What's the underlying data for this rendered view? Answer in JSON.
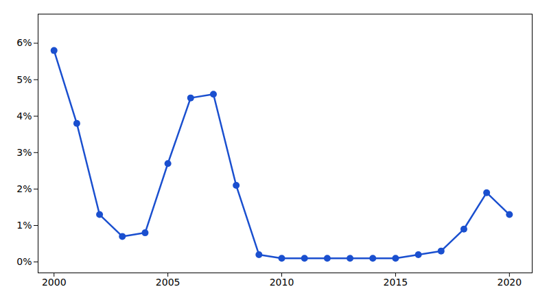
{
  "chart_data": {
    "type": "line",
    "x": [
      2000,
      2001,
      2002,
      2003,
      2004,
      2005,
      2006,
      2007,
      2008,
      2009,
      2010,
      2011,
      2012,
      2013,
      2014,
      2015,
      2016,
      2017,
      2018,
      2019,
      2020
    ],
    "values": [
      0.058,
      0.038,
      0.013,
      0.007,
      0.008,
      0.027,
      0.045,
      0.046,
      0.021,
      0.002,
      0.001,
      0.001,
      0.001,
      0.001,
      0.001,
      0.001,
      0.002,
      0.003,
      0.009,
      0.019,
      0.013
    ],
    "color": "#1a4fcf",
    "marker": "circle",
    "xlim": [
      1999.3,
      2021.0
    ],
    "ylim": [
      -0.003,
      0.068
    ],
    "xticks": [
      2000,
      2005,
      2010,
      2015,
      2020
    ],
    "yticks": [
      {
        "value": 0.0,
        "label": "0%"
      },
      {
        "value": 0.01,
        "label": "1%"
      },
      {
        "value": 0.02,
        "label": "2%"
      },
      {
        "value": 0.03,
        "label": "3%"
      },
      {
        "value": 0.04,
        "label": "4%"
      },
      {
        "value": 0.05,
        "label": "5%"
      },
      {
        "value": 0.06,
        "label": "6%"
      }
    ],
    "grid": false
  }
}
